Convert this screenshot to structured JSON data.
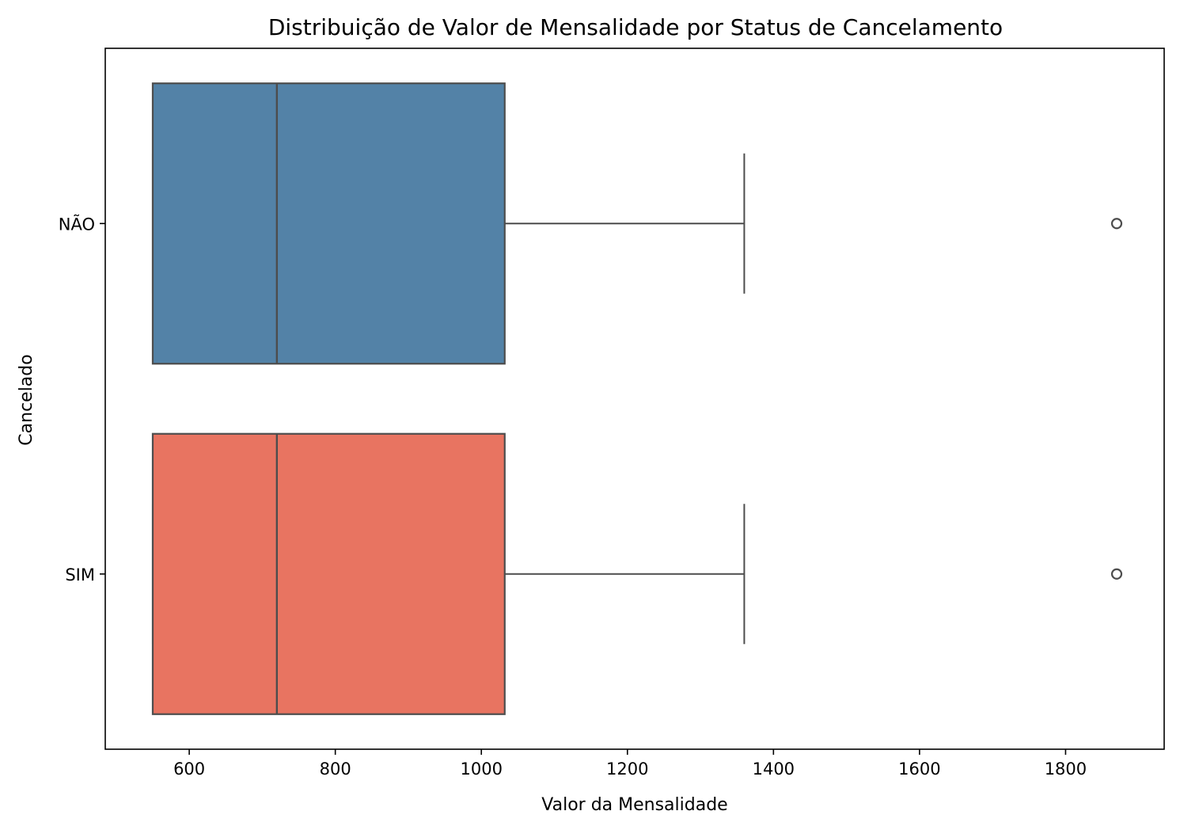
{
  "chart_data": {
    "type": "boxplot",
    "orientation": "horizontal",
    "title": "Distribuição de Valor de Mensalidade por Status de Cancelamento",
    "xlabel": "Valor da Mensalidade",
    "ylabel": "Cancelado",
    "xlim": [
      485,
      1935
    ],
    "xticks": [
      600,
      800,
      1000,
      1200,
      1400,
      1600,
      1800
    ],
    "grid": false,
    "legend": "none",
    "categories": [
      "NÃO",
      "SIM"
    ],
    "boxes": [
      {
        "category": "NÃO",
        "color": "#5382a7",
        "whisker_low": 550,
        "q1": 550,
        "median": 720,
        "q3": 1032,
        "whisker_high": 1360,
        "outliers": [
          1870
        ]
      },
      {
        "category": "SIM",
        "color": "#e87461",
        "whisker_low": 550,
        "q1": 550,
        "median": 720,
        "q3": 1032,
        "whisker_high": 1360,
        "outliers": [
          1870
        ]
      }
    ],
    "line_color": "#4d4d4d"
  }
}
